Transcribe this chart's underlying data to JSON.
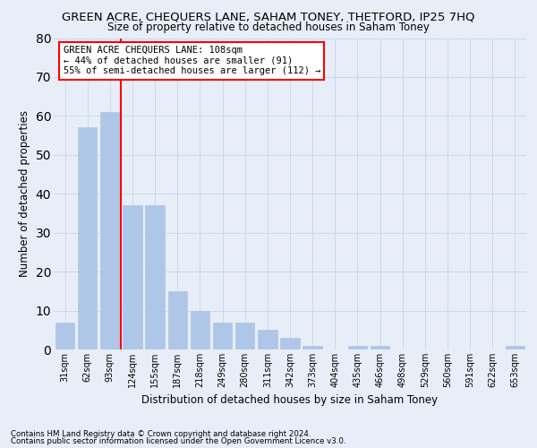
{
  "title": "GREEN ACRE, CHEQUERS LANE, SAHAM TONEY, THETFORD, IP25 7HQ",
  "subtitle": "Size of property relative to detached houses in Saham Toney",
  "xlabel": "Distribution of detached houses by size in Saham Toney",
  "ylabel": "Number of detached properties",
  "categories": [
    "31sqm",
    "62sqm",
    "93sqm",
    "124sqm",
    "155sqm",
    "187sqm",
    "218sqm",
    "249sqm",
    "280sqm",
    "311sqm",
    "342sqm",
    "373sqm",
    "404sqm",
    "435sqm",
    "466sqm",
    "498sqm",
    "529sqm",
    "560sqm",
    "591sqm",
    "622sqm",
    "653sqm"
  ],
  "values": [
    7,
    57,
    61,
    37,
    37,
    15,
    10,
    7,
    7,
    5,
    3,
    1,
    0,
    1,
    1,
    0,
    0,
    0,
    0,
    0,
    1
  ],
  "bar_color": "#aec6e8",
  "bar_edge_color": "#aec6e8",
  "grid_color": "#c8d4e8",
  "background_color": "#e8eef8",
  "vline_x_index": 2,
  "vline_color": "red",
  "annotation_text": "GREEN ACRE CHEQUERS LANE: 108sqm\n← 44% of detached houses are smaller (91)\n55% of semi-detached houses are larger (112) →",
  "annotation_box_color": "white",
  "annotation_box_edge": "red",
  "ylim": [
    0,
    80
  ],
  "yticks": [
    0,
    10,
    20,
    30,
    40,
    50,
    60,
    70,
    80
  ],
  "footnote1": "Contains HM Land Registry data © Crown copyright and database right 2024.",
  "footnote2": "Contains public sector information licensed under the Open Government Licence v3.0."
}
